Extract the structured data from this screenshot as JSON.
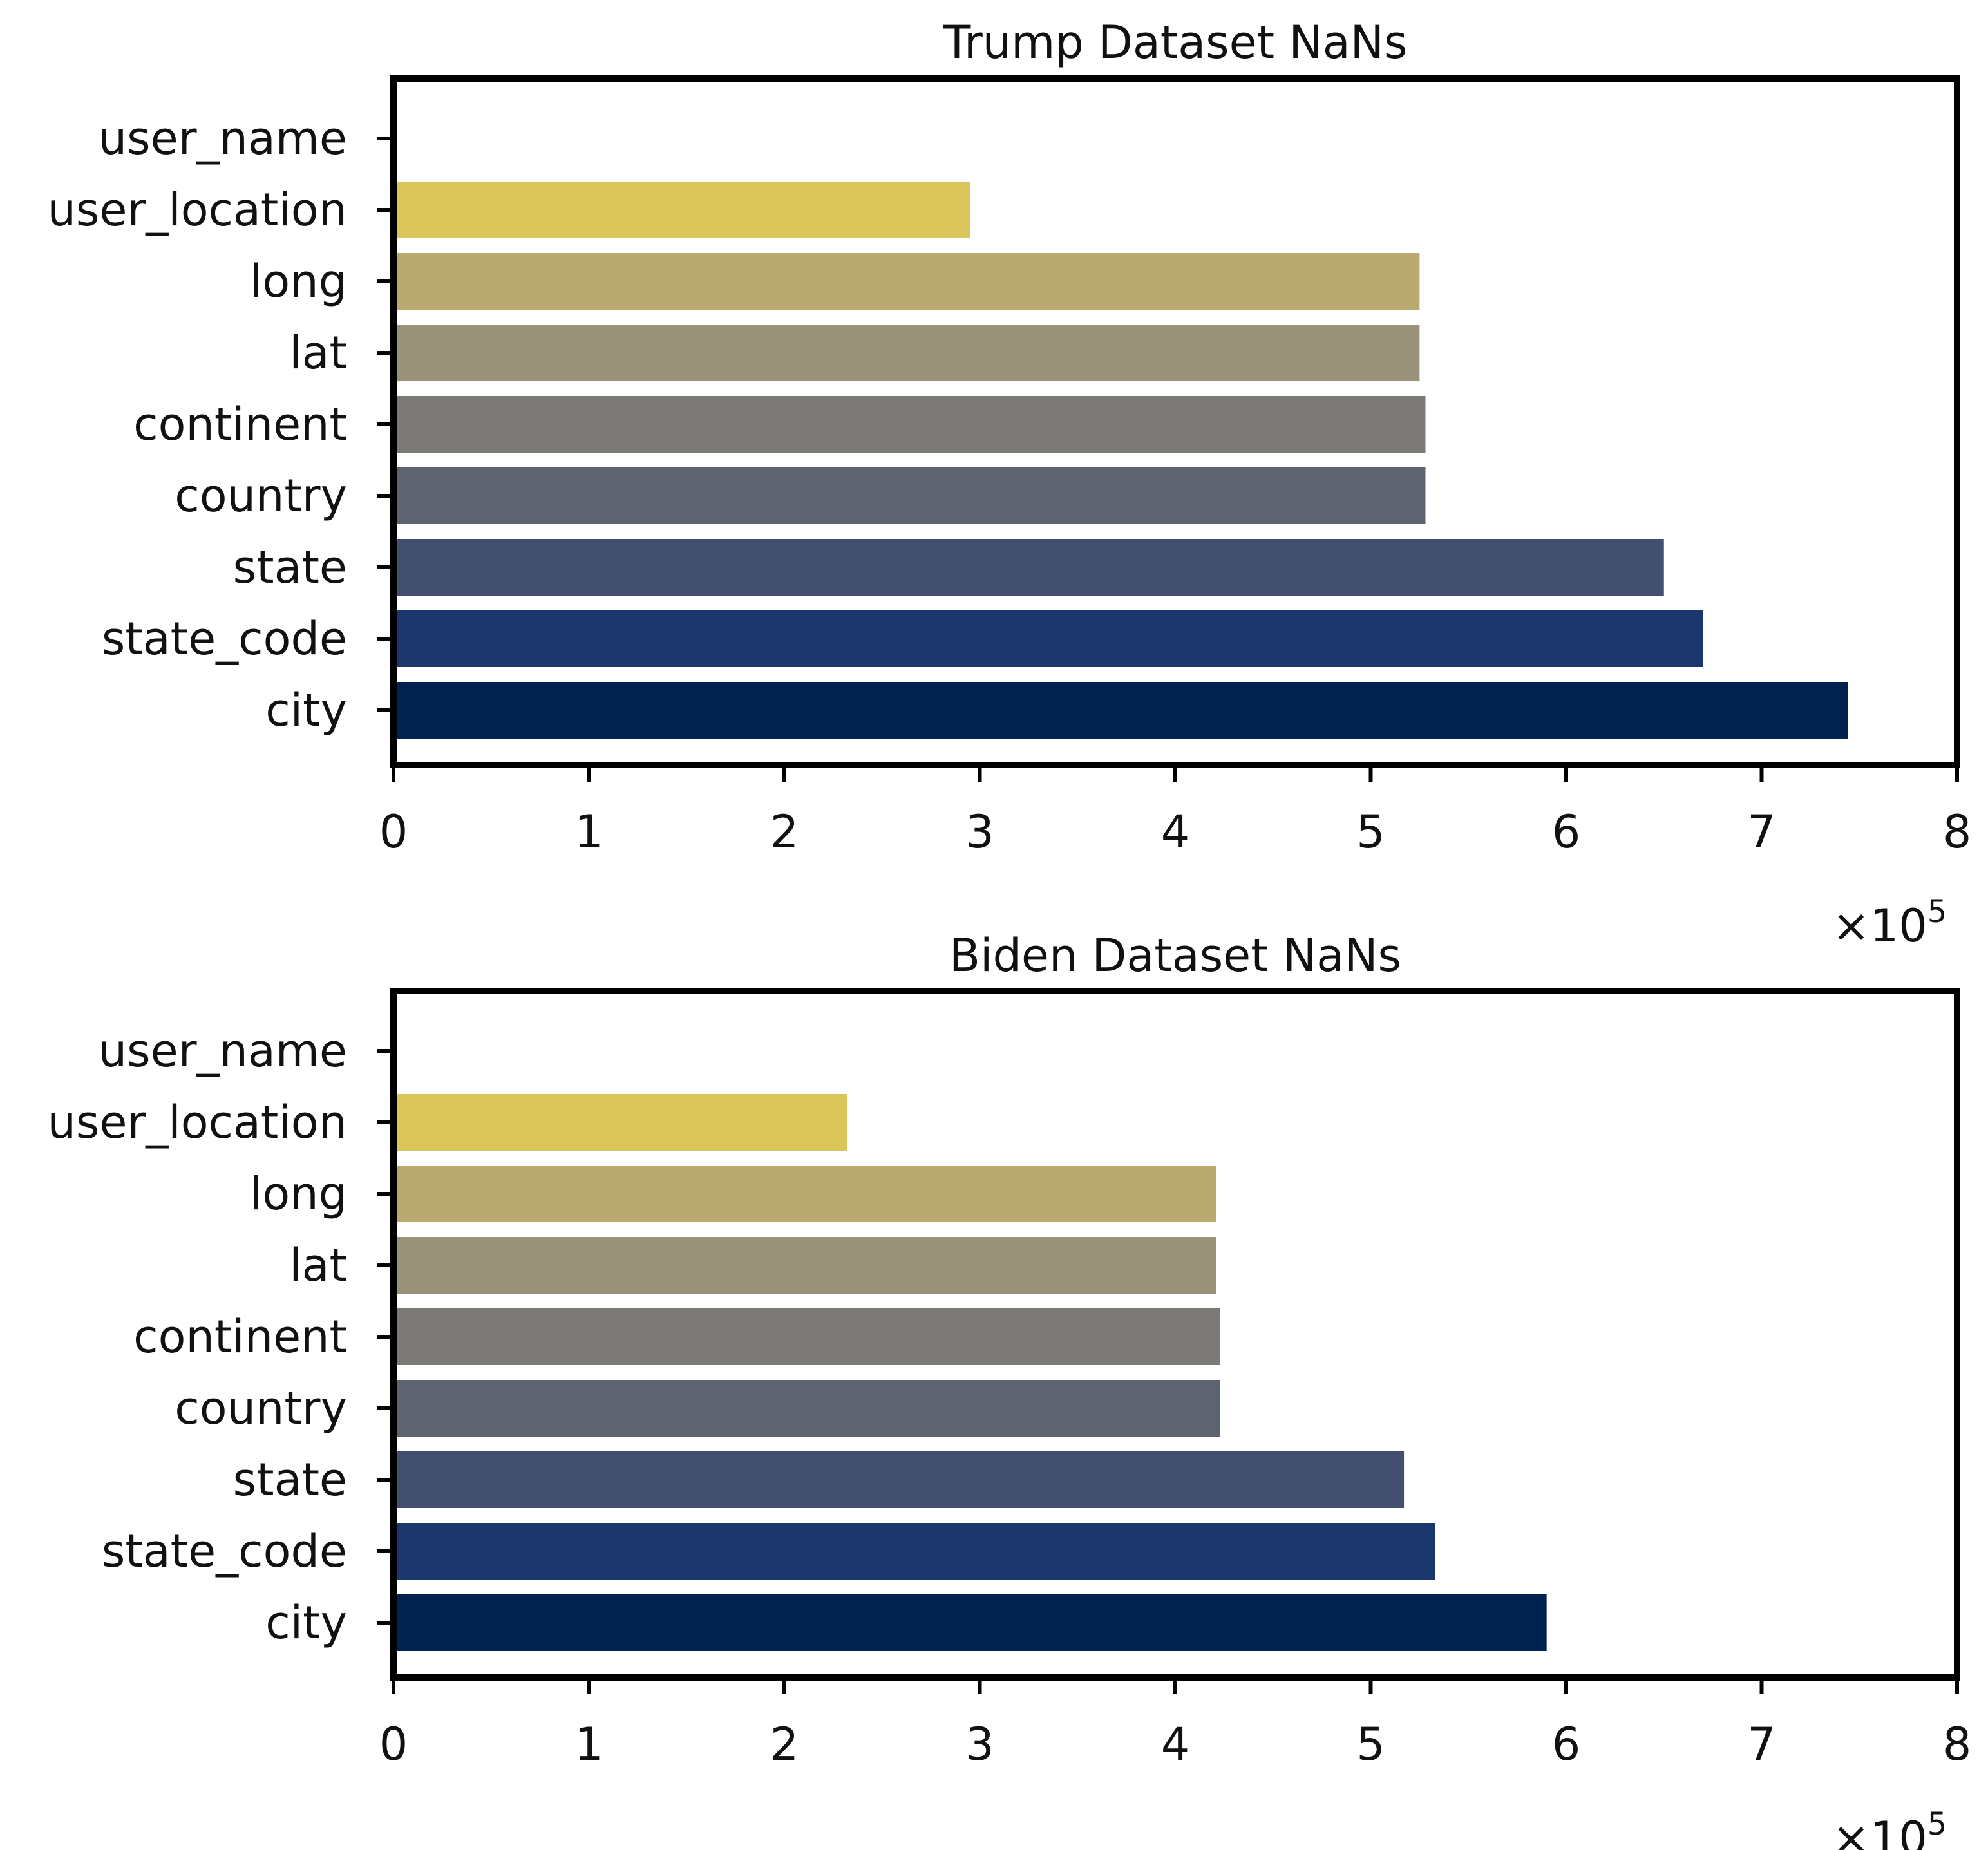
{
  "chart_data": [
    {
      "type": "bar",
      "orientation": "horizontal",
      "title": "Trump Dataset NaNs",
      "categories": [
        "user_name",
        "user_location",
        "long",
        "lat",
        "continent",
        "country",
        "state",
        "state_code",
        "city"
      ],
      "values": [
        0,
        295000,
        525000,
        525000,
        528000,
        528000,
        650000,
        670000,
        744000
      ],
      "xlim": [
        0,
        800000
      ],
      "x_ticks": [
        0,
        1,
        2,
        3,
        4,
        5,
        6,
        7,
        8
      ],
      "x_multiplier": "×10",
      "x_multiplier_exp": "5",
      "grid": false,
      "xlabel": "",
      "ylabel": ""
    },
    {
      "type": "bar",
      "orientation": "horizontal",
      "title": "Biden Dataset NaNs",
      "categories": [
        "user_name",
        "user_location",
        "long",
        "lat",
        "continent",
        "country",
        "state",
        "state_code",
        "city"
      ],
      "values": [
        0,
        232000,
        421000,
        421000,
        423000,
        423000,
        517000,
        533000,
        590000
      ],
      "xlim": [
        0,
        800000
      ],
      "x_ticks": [
        0,
        1,
        2,
        3,
        4,
        5,
        6,
        7,
        8
      ],
      "x_multiplier": "×10",
      "x_multiplier_exp": "5",
      "grid": false,
      "xlabel": "",
      "ylabel": ""
    }
  ],
  "colors": {
    "bars": [
      "#e7d77c",
      "#dbc65c",
      "#b8aa70",
      "#9a9278",
      "#7b7a76",
      "#5e6370",
      "#424f6e",
      "#1b376d",
      "#00224e"
    ],
    "frame": "#000000"
  }
}
